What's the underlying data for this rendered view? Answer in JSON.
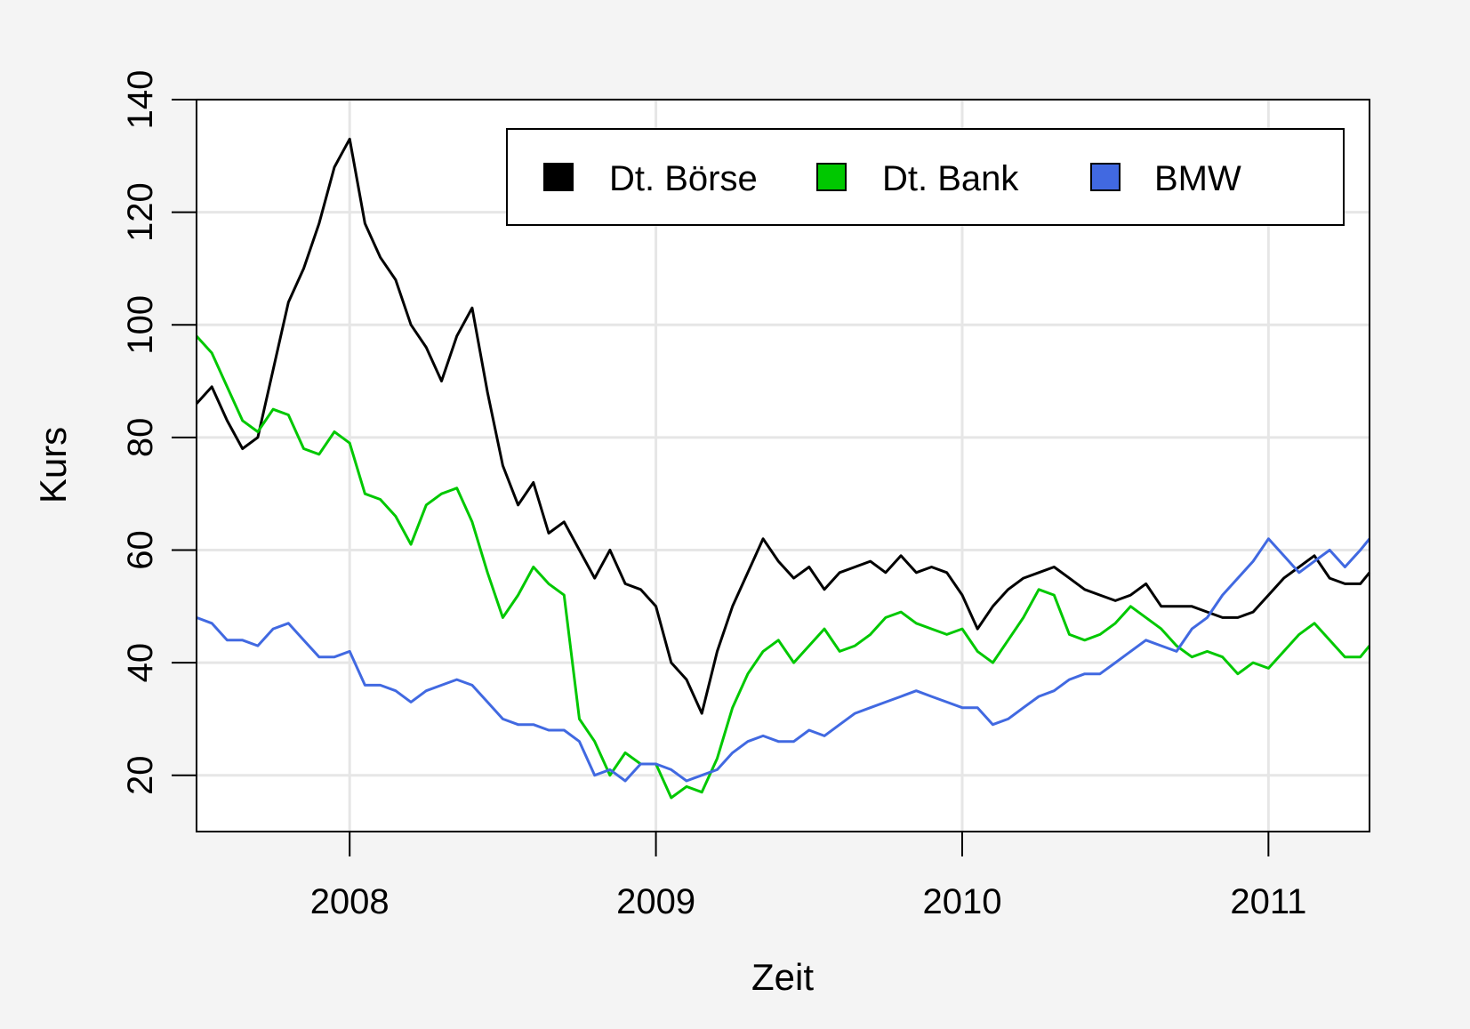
{
  "chart_data": {
    "type": "line",
    "title": "",
    "xlabel": "Zeit",
    "ylabel": "Kurs",
    "xlim": [
      2007.5,
      2011.33
    ],
    "ylim": [
      10,
      140
    ],
    "x_ticks": [
      {
        "value": 2008,
        "label": "2008"
      },
      {
        "value": 2009,
        "label": "2009"
      },
      {
        "value": 2010,
        "label": "2010"
      },
      {
        "value": 2011,
        "label": "2011"
      }
    ],
    "y_ticks": [
      {
        "value": 20,
        "label": "20"
      },
      {
        "value": 40,
        "label": "40"
      },
      {
        "value": 60,
        "label": "60"
      },
      {
        "value": 80,
        "label": "80"
      },
      {
        "value": 100,
        "label": "100"
      },
      {
        "value": 120,
        "label": "120"
      },
      {
        "value": 140,
        "label": "140"
      }
    ],
    "grid": true,
    "legend_position": "top-right",
    "series": [
      {
        "name": "Dt. Börse",
        "color": "#000000",
        "x": [
          2007.5,
          2007.55,
          2007.6,
          2007.65,
          2007.7,
          2007.75,
          2007.8,
          2007.85,
          2007.9,
          2007.95,
          2008.0,
          2008.05,
          2008.1,
          2008.15,
          2008.2,
          2008.25,
          2008.3,
          2008.35,
          2008.4,
          2008.45,
          2008.5,
          2008.55,
          2008.6,
          2008.65,
          2008.7,
          2008.75,
          2008.8,
          2008.85,
          2008.9,
          2008.95,
          2009.0,
          2009.05,
          2009.1,
          2009.15,
          2009.2,
          2009.25,
          2009.3,
          2009.35,
          2009.4,
          2009.45,
          2009.5,
          2009.55,
          2009.6,
          2009.65,
          2009.7,
          2009.75,
          2009.8,
          2009.85,
          2009.9,
          2009.95,
          2010.0,
          2010.05,
          2010.1,
          2010.15,
          2010.2,
          2010.25,
          2010.3,
          2010.35,
          2010.4,
          2010.45,
          2010.5,
          2010.55,
          2010.6,
          2010.65,
          2010.7,
          2010.75,
          2010.8,
          2010.85,
          2010.9,
          2010.95,
          2011.0,
          2011.05,
          2011.1,
          2011.15,
          2011.2,
          2011.25,
          2011.3,
          2011.33
        ],
        "y": [
          86,
          89,
          83,
          78,
          80,
          92,
          104,
          110,
          118,
          128,
          133,
          118,
          112,
          108,
          100,
          96,
          90,
          98,
          103,
          88,
          75,
          68,
          72,
          63,
          65,
          60,
          55,
          60,
          54,
          53,
          50,
          40,
          37,
          31,
          42,
          50,
          56,
          62,
          58,
          55,
          57,
          53,
          56,
          57,
          58,
          56,
          59,
          56,
          57,
          56,
          52,
          46,
          50,
          53,
          55,
          56,
          57,
          55,
          53,
          52,
          51,
          52,
          54,
          50,
          50,
          50,
          49,
          48,
          48,
          49,
          52,
          55,
          57,
          59,
          55,
          54,
          54,
          56
        ]
      },
      {
        "name": "Dt. Bank",
        "color": "#00c800",
        "x": [
          2007.5,
          2007.55,
          2007.6,
          2007.65,
          2007.7,
          2007.75,
          2007.8,
          2007.85,
          2007.9,
          2007.95,
          2008.0,
          2008.05,
          2008.1,
          2008.15,
          2008.2,
          2008.25,
          2008.3,
          2008.35,
          2008.4,
          2008.45,
          2008.5,
          2008.55,
          2008.6,
          2008.65,
          2008.7,
          2008.75,
          2008.8,
          2008.85,
          2008.9,
          2008.95,
          2009.0,
          2009.05,
          2009.1,
          2009.15,
          2009.2,
          2009.25,
          2009.3,
          2009.35,
          2009.4,
          2009.45,
          2009.5,
          2009.55,
          2009.6,
          2009.65,
          2009.7,
          2009.75,
          2009.8,
          2009.85,
          2009.9,
          2009.95,
          2010.0,
          2010.05,
          2010.1,
          2010.15,
          2010.2,
          2010.25,
          2010.3,
          2010.35,
          2010.4,
          2010.45,
          2010.5,
          2010.55,
          2010.6,
          2010.65,
          2010.7,
          2010.75,
          2010.8,
          2010.85,
          2010.9,
          2010.95,
          2011.0,
          2011.05,
          2011.1,
          2011.15,
          2011.2,
          2011.25,
          2011.3,
          2011.33
        ],
        "y": [
          98,
          95,
          89,
          83,
          81,
          85,
          84,
          78,
          77,
          81,
          79,
          70,
          69,
          66,
          61,
          68,
          70,
          71,
          65,
          56,
          48,
          52,
          57,
          54,
          52,
          30,
          26,
          20,
          24,
          22,
          22,
          16,
          18,
          17,
          23,
          32,
          38,
          42,
          44,
          40,
          43,
          46,
          42,
          43,
          45,
          48,
          49,
          47,
          46,
          45,
          46,
          42,
          40,
          44,
          48,
          53,
          52,
          45,
          44,
          45,
          47,
          50,
          48,
          46,
          43,
          41,
          42,
          41,
          38,
          40,
          39,
          42,
          45,
          47,
          44,
          41,
          41,
          43
        ]
      },
      {
        "name": "BMW",
        "color": "#4169e1",
        "x": [
          2007.5,
          2007.55,
          2007.6,
          2007.65,
          2007.7,
          2007.75,
          2007.8,
          2007.85,
          2007.9,
          2007.95,
          2008.0,
          2008.05,
          2008.1,
          2008.15,
          2008.2,
          2008.25,
          2008.3,
          2008.35,
          2008.4,
          2008.45,
          2008.5,
          2008.55,
          2008.6,
          2008.65,
          2008.7,
          2008.75,
          2008.8,
          2008.85,
          2008.9,
          2008.95,
          2009.0,
          2009.05,
          2009.1,
          2009.15,
          2009.2,
          2009.25,
          2009.3,
          2009.35,
          2009.4,
          2009.45,
          2009.5,
          2009.55,
          2009.6,
          2009.65,
          2009.7,
          2009.75,
          2009.8,
          2009.85,
          2009.9,
          2009.95,
          2010.0,
          2010.05,
          2010.1,
          2010.15,
          2010.2,
          2010.25,
          2010.3,
          2010.35,
          2010.4,
          2010.45,
          2010.5,
          2010.55,
          2010.6,
          2010.65,
          2010.7,
          2010.75,
          2010.8,
          2010.85,
          2010.9,
          2010.95,
          2011.0,
          2011.05,
          2011.1,
          2011.15,
          2011.2,
          2011.25,
          2011.3,
          2011.33
        ],
        "y": [
          48,
          47,
          44,
          44,
          43,
          46,
          47,
          44,
          41,
          41,
          42,
          36,
          36,
          35,
          33,
          35,
          36,
          37,
          36,
          33,
          30,
          29,
          29,
          28,
          28,
          26,
          20,
          21,
          19,
          22,
          22,
          21,
          19,
          20,
          21,
          24,
          26,
          27,
          26,
          26,
          28,
          27,
          29,
          31,
          32,
          33,
          34,
          35,
          34,
          33,
          32,
          32,
          29,
          30,
          32,
          34,
          35,
          37,
          38,
          38,
          40,
          42,
          44,
          43,
          42,
          46,
          48,
          52,
          55,
          58,
          62,
          59,
          56,
          58,
          60,
          57,
          60,
          62
        ]
      }
    ]
  }
}
